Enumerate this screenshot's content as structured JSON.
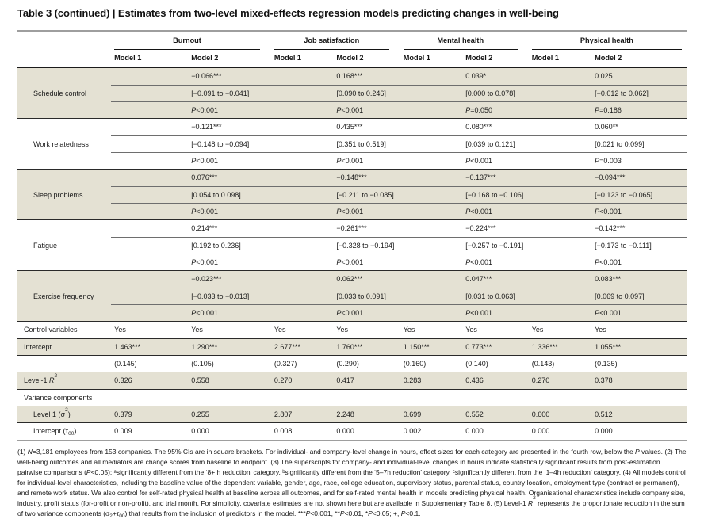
{
  "title": "Table 3 (continued) | Estimates from two-level mixed-effects regression models predicting changes in well-being",
  "table": {
    "groups": [
      {
        "label": "Burnout"
      },
      {
        "label": "Job satisfaction"
      },
      {
        "label": "Mental health"
      },
      {
        "label": "Physical health"
      }
    ],
    "model_headers": [
      "Model 1",
      "Model 2",
      "Model 1",
      "Model 2",
      "Model 1",
      "Model 2",
      "Model 1",
      "Model 2"
    ],
    "rows": [
      {
        "kind": "mediator",
        "label": "Schedule control",
        "shaded": true,
        "est": [
          "",
          "−0.066***",
          "",
          "0.168***",
          "",
          "0.039*",
          "",
          "0.025"
        ],
        "ci": [
          "",
          "[−0.091 to −0.041]",
          "",
          "[0.090 to 0.246]",
          "",
          "[0.000 to 0.078]",
          "",
          "[−0.012 to 0.062]"
        ],
        "p": [
          "",
          "P<0.001",
          "",
          "P<0.001",
          "",
          "P=0.050",
          "",
          "P=0.186"
        ]
      },
      {
        "kind": "mediator",
        "label": "Work relatedness",
        "shaded": false,
        "est": [
          "",
          "−0.121***",
          "",
          "0.435***",
          "",
          "0.080***",
          "",
          "0.060**"
        ],
        "ci": [
          "",
          "[−0.148 to −0.094]",
          "",
          "[0.351 to 0.519]",
          "",
          "[0.039 to 0.121]",
          "",
          "[0.021 to 0.099]"
        ],
        "p": [
          "",
          "P<0.001",
          "",
          "P<0.001",
          "",
          "P<0.001",
          "",
          "P=0.003"
        ]
      },
      {
        "kind": "mediator",
        "label": "Sleep problems",
        "shaded": true,
        "est": [
          "",
          "0.076***",
          "",
          "−0.148***",
          "",
          "−0.137***",
          "",
          "−0.094***"
        ],
        "ci": [
          "",
          "[0.054 to 0.098]",
          "",
          "[−0.211 to −0.085]",
          "",
          "[−0.168 to −0.106]",
          "",
          "[−0.123 to −0.065]"
        ],
        "p": [
          "",
          "P<0.001",
          "",
          "P<0.001",
          "",
          "P<0.001",
          "",
          "P<0.001"
        ]
      },
      {
        "kind": "mediator",
        "label": "Fatigue",
        "shaded": false,
        "est": [
          "",
          "0.214***",
          "",
          "−0.261***",
          "",
          "−0.224***",
          "",
          "−0.142***"
        ],
        "ci": [
          "",
          "[0.192 to 0.236]",
          "",
          "[−0.328 to −0.194]",
          "",
          "[−0.257 to −0.191]",
          "",
          "[−0.173 to −0.111]"
        ],
        "p": [
          "",
          "P<0.001",
          "",
          "P<0.001",
          "",
          "P<0.001",
          "",
          "P<0.001"
        ]
      },
      {
        "kind": "mediator",
        "label": "Exercise frequency",
        "shaded": true,
        "est": [
          "",
          "−0.023***",
          "",
          "0.062***",
          "",
          "0.047***",
          "",
          "0.083***"
        ],
        "ci": [
          "",
          "[−0.033 to −0.013]",
          "",
          "[0.033 to 0.091]",
          "",
          "[0.031 to 0.063]",
          "",
          "[0.069 to 0.097]"
        ],
        "p": [
          "",
          "P<0.001",
          "",
          "P<0.001",
          "",
          "P<0.001",
          "",
          "P<0.001"
        ]
      },
      {
        "kind": "single",
        "label": "Control variables",
        "shaded": false,
        "indent": false,
        "cells": [
          "Yes",
          "Yes",
          "Yes",
          "Yes",
          "Yes",
          "Yes",
          "Yes",
          "Yes"
        ]
      },
      {
        "kind": "single",
        "label": "Intercept",
        "shaded": true,
        "indent": false,
        "cells": [
          "1.463***",
          "1.290***",
          "2.677***",
          "1.760***",
          "1.150***",
          "0.773***",
          "1.336***",
          "1.055***"
        ]
      },
      {
        "kind": "single",
        "label": "",
        "shaded": false,
        "indent": false,
        "cells": [
          "(0.145)",
          "(0.105)",
          "(0.327)",
          "(0.290)",
          "(0.160)",
          "(0.140)",
          "(0.143)",
          "(0.135)"
        ]
      },
      {
        "kind": "single",
        "label": "Level-1 R²",
        "shaded": true,
        "indent": false,
        "cells": [
          "0.326",
          "0.558",
          "0.270",
          "0.417",
          "0.283",
          "0.436",
          "0.270",
          "0.378"
        ]
      },
      {
        "kind": "section",
        "label": "Variance components",
        "shaded": false
      },
      {
        "kind": "single",
        "label": "Level 1 (σ²)",
        "shaded": true,
        "indent": true,
        "cells": [
          "0.379",
          "0.255",
          "2.807",
          "2.248",
          "0.699",
          "0.552",
          "0.600",
          "0.512"
        ]
      },
      {
        "kind": "single",
        "label": "Intercept (τ₀₀)",
        "shaded": false,
        "indent": true,
        "cells": [
          "0.009",
          "0.000",
          "0.008",
          "0.000",
          "0.002",
          "0.000",
          "0.000",
          "0.000"
        ]
      }
    ]
  },
  "footnote": "(1) N=3,181 employees from 153 companies. The 95% CIs are in square brackets. For individual- and company-level change in hours, effect sizes for each category are presented in the fourth row, below the P values. (2) The well-being outcomes and all mediators are change scores from baseline to endpoint. (3) The superscripts for company- and individual-level changes in hours indicate statistically significant results from post-estimation pairwise comparisons (P<0.05): ᵃsignificantly different from the ‘8+ h reduction’ category, ᵇsignificantly different from the ‘5–7h reduction’ category, ᶜsignificantly different from the ‘1–4h reduction’ category. (4) All models control for individual-level characteristics, including the baseline value of the dependent variable, gender, age, race, college education, supervisory status, parental status, country location, employment type (contract or permanent), and remote work status. We also control for self-rated physical health at baseline across all outcomes, and for self-rated mental health in models predicting physical health. Organisational characteristics include company size, industry, profit status (for-profit or non-profit), and trial month. For simplicity, covariate estimates are not shown here but are available in Supplementary Table 8. (5) Level-1 R² represents the proportionate reduction in the sum of two variance components (σ₂+τ₀₀) that results from the inclusion of predictors in the model. ***P<0.001, **P<0.01, *P<0.05; +, P<0.1."
}
